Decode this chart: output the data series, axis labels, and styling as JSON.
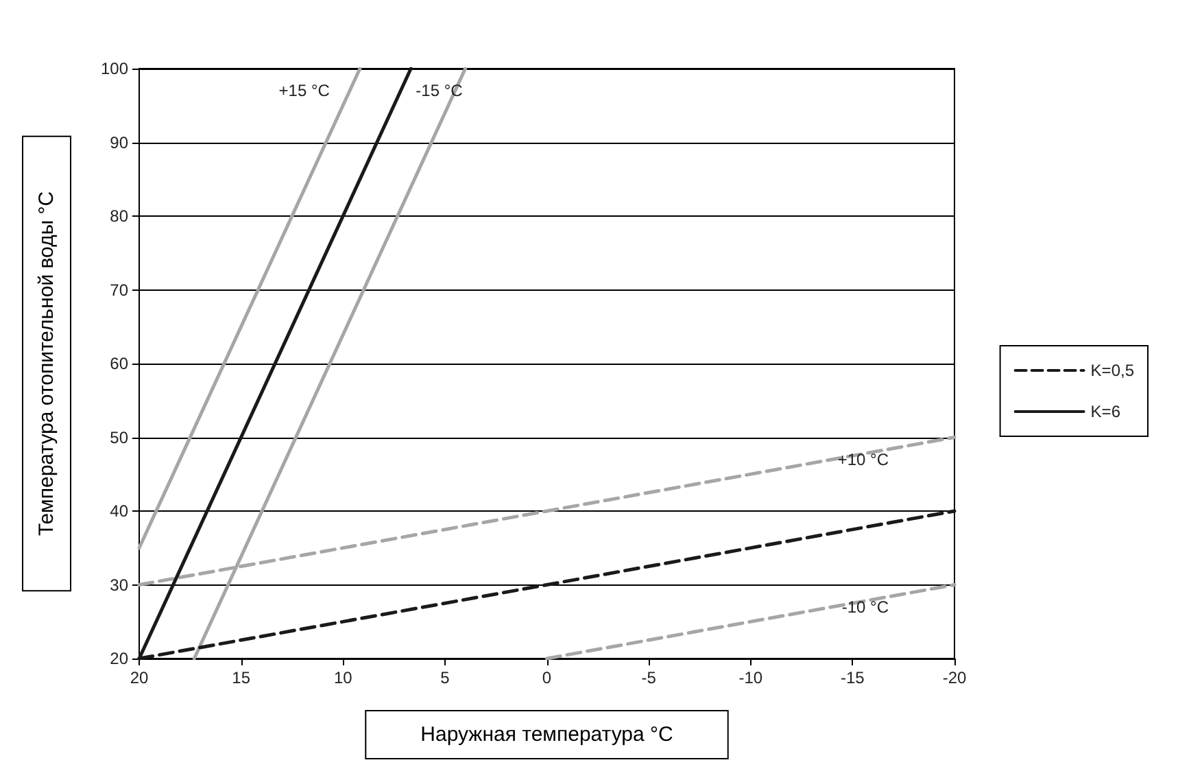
{
  "chart_data": {
    "type": "line",
    "xlabel": "Наружная температура °C",
    "ylabel": "Температура отопительной воды °C",
    "xlim": [
      20,
      -20
    ],
    "xticks": [
      20,
      15,
      10,
      5,
      0,
      -5,
      -10,
      -15,
      -20
    ],
    "ylim": [
      20,
      100
    ],
    "yticks": [
      20,
      30,
      40,
      50,
      60,
      70,
      80,
      90,
      100
    ],
    "grid": "y",
    "legend": "right",
    "marker": "none",
    "series": [
      {
        "name": "K=0,5",
        "color": "#1a1a1a",
        "line_style": "dashed",
        "x": [
          20,
          -20
        ],
        "values": [
          20,
          40
        ]
      },
      {
        "name": "K=6",
        "color": "#1a1a1a",
        "line_style": "solid",
        "x": [
          20,
          6.67
        ],
        "values": [
          20,
          100
        ]
      },
      {
        "name": "+15 °C",
        "color": "#a6a6a6",
        "line_style": "solid",
        "x": [
          20,
          9.17
        ],
        "values": [
          35,
          100
        ]
      },
      {
        "name": "-15 °C",
        "color": "#a6a6a6",
        "line_style": "solid",
        "x": [
          17.3,
          4
        ],
        "values": [
          20,
          100
        ]
      },
      {
        "name": "+10 °C",
        "color": "#a6a6a6",
        "line_style": "dashed",
        "x": [
          20,
          -20
        ],
        "values": [
          30,
          50
        ]
      },
      {
        "name": "-10 °C",
        "color": "#a6a6a6",
        "line_style": "dashed",
        "x": [
          0,
          -20
        ],
        "values": [
          20,
          30
        ]
      }
    ]
  }
}
